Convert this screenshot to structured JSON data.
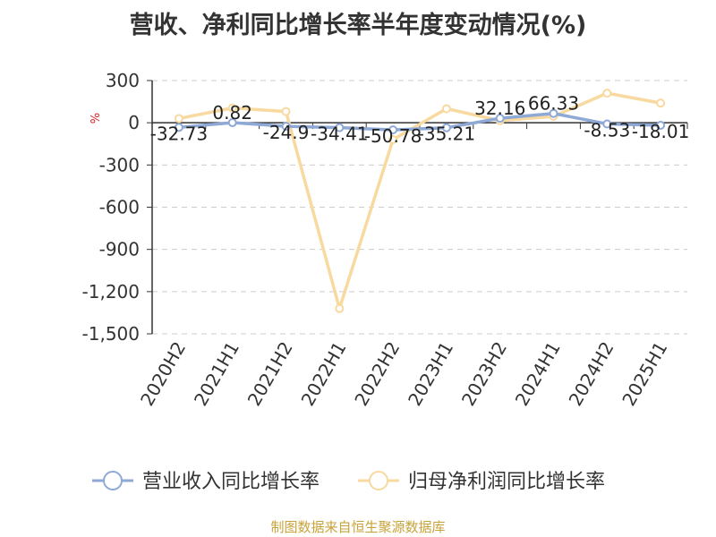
{
  "title": "营收、净利同比增长率半年度变动情况(%)",
  "source": "制图数据来自恒生聚源数据库",
  "chart_data": {
    "type": "line",
    "ylabel": "%",
    "ylim": [
      -1500,
      300
    ],
    "yticks": [
      300,
      0,
      -300,
      -600,
      -900,
      -1200,
      -1500
    ],
    "ytick_labels": [
      "300",
      "0",
      "-300",
      "-600",
      "-900",
      "-1,200",
      "-1,500"
    ],
    "grid": true,
    "legend_position": "bottom",
    "categories": [
      "2020H2",
      "2021H1",
      "2021H2",
      "2022H1",
      "2022H2",
      "2023H1",
      "2023H2",
      "2024H1",
      "2024H2",
      "2025H1"
    ],
    "series": [
      {
        "name": "营业收入同比增长率",
        "color": "#8fa9d6",
        "values": [
          -32.73,
          0.82,
          -24.9,
          -34.41,
          -50.78,
          -35.21,
          32.16,
          66.33,
          -8.53,
          -18.01
        ],
        "labels": [
          "-32.73",
          "0.82",
          "-24.9",
          "-34.41",
          "-50.78",
          "-35.21",
          "32.16",
          "66.33",
          "-8.53",
          "-18.01"
        ]
      },
      {
        "name": "归母净利润同比增长率",
        "color": "#f8d9a0",
        "values": [
          30,
          105,
          80,
          -1320,
          -120,
          100,
          15,
          45,
          210,
          140
        ]
      }
    ]
  }
}
